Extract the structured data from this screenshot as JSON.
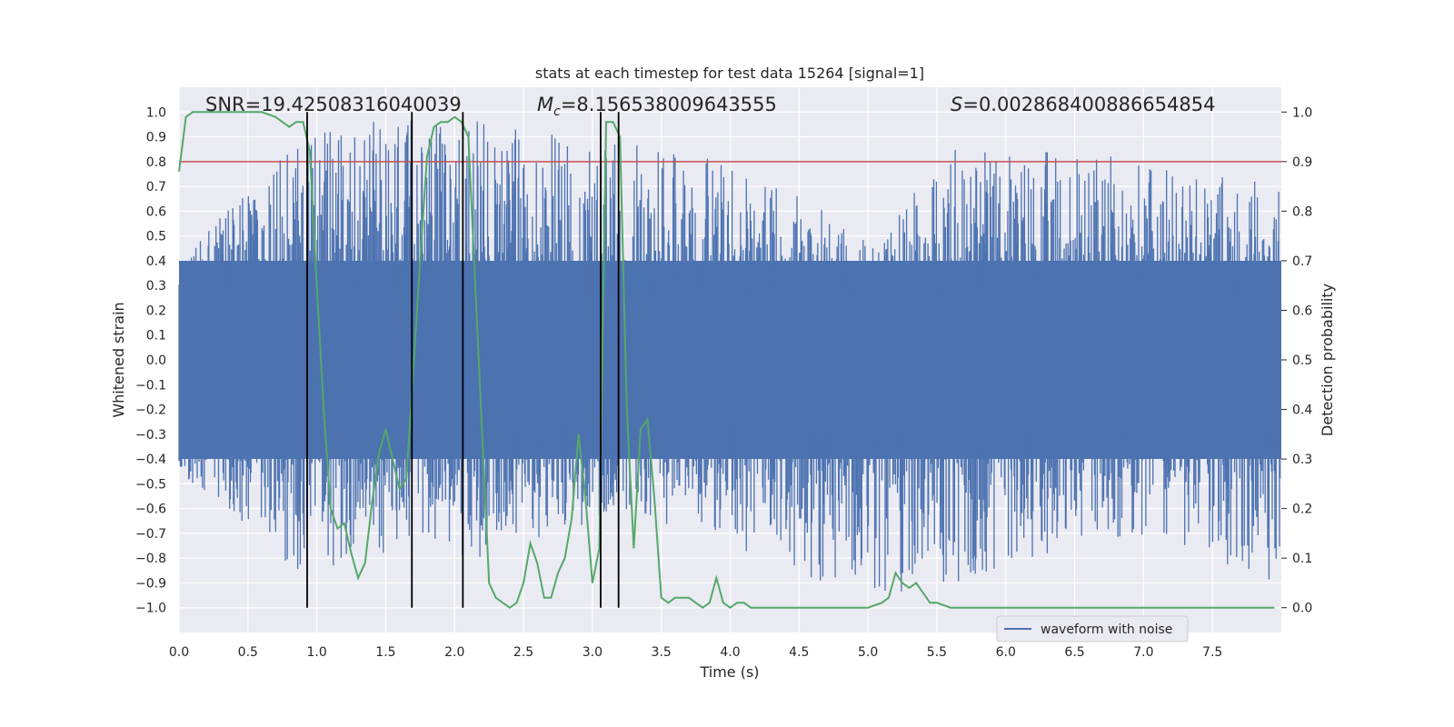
{
  "chart_data": {
    "type": "line",
    "title": "stats at each timestep for test data 15264 [signal=1]",
    "xlabel": "Time (s)",
    "ylabel": "Whitened strain",
    "y2label": "Detection probability",
    "xlim": [
      0.0,
      8.0
    ],
    "ylim": [
      -1.1,
      1.1
    ],
    "y2lim": [
      -0.05,
      1.05
    ],
    "xticks": [
      "0.0",
      "0.5",
      "1.0",
      "1.5",
      "2.0",
      "2.5",
      "3.0",
      "3.5",
      "4.0",
      "4.5",
      "5.0",
      "5.5",
      "6.0",
      "6.5",
      "7.0",
      "7.5"
    ],
    "yticks": [
      "1.0",
      "0.9",
      "0.8",
      "0.7",
      "0.6",
      "0.5",
      "0.4",
      "0.3",
      "0.2",
      "0.1",
      "0.0",
      "-0.1",
      "-0.2",
      "-0.3",
      "-0.4",
      "-0.5",
      "-0.6",
      "-0.7",
      "-0.8",
      "-0.9",
      "-1.0"
    ],
    "y2ticks": [
      "1.0",
      "0.9",
      "0.8",
      "0.7",
      "0.6",
      "0.5",
      "0.4",
      "0.3",
      "0.2",
      "0.1",
      "0.0"
    ],
    "grid": true,
    "legend_position": "lower-right",
    "annotations": {
      "snr": "SNR=19.42508316040039",
      "mc_symbol": "M",
      "mc_sub": "c",
      "mc_value": "=8.156538009643555",
      "s_symbol": "S",
      "s_value": "=0.002868400886654854"
    },
    "series": [
      {
        "name": "waveform with noise",
        "axis": "left",
        "color": "#4c72b0",
        "render": "dense-noise",
        "envelope": [
          {
            "x": 0.0,
            "upper": 0.4,
            "lower": -0.45
          },
          {
            "x": 0.9,
            "upper": 0.92,
            "lower": -0.88
          },
          {
            "x": 1.5,
            "upper": 0.98,
            "lower": -0.78
          },
          {
            "x": 2.1,
            "upper": 0.97,
            "lower": -0.82
          },
          {
            "x": 3.2,
            "upper": 0.88,
            "lower": -0.62
          },
          {
            "x": 4.0,
            "upper": 0.8,
            "lower": -0.75
          },
          {
            "x": 5.1,
            "upper": 0.5,
            "lower": -0.99
          },
          {
            "x": 5.6,
            "upper": 0.88,
            "lower": -0.93
          },
          {
            "x": 6.9,
            "upper": 0.82,
            "lower": -0.7
          },
          {
            "x": 7.9,
            "upper": 0.72,
            "lower": -0.9
          }
        ]
      },
      {
        "name": "detection probability",
        "axis": "right",
        "color": "#55a868",
        "x": [
          0.0,
          0.05,
          0.1,
          0.2,
          0.3,
          0.4,
          0.5,
          0.6,
          0.7,
          0.75,
          0.8,
          0.85,
          0.9,
          0.95,
          1.0,
          1.05,
          1.1,
          1.15,
          1.2,
          1.25,
          1.3,
          1.35,
          1.4,
          1.45,
          1.5,
          1.55,
          1.6,
          1.65,
          1.7,
          1.75,
          1.8,
          1.85,
          1.9,
          1.95,
          2.0,
          2.05,
          2.1,
          2.15,
          2.2,
          2.25,
          2.3,
          2.35,
          2.4,
          2.45,
          2.5,
          2.55,
          2.6,
          2.65,
          2.7,
          2.75,
          2.8,
          2.85,
          2.9,
          2.95,
          3.0,
          3.05,
          3.1,
          3.15,
          3.2,
          3.25,
          3.3,
          3.35,
          3.4,
          3.45,
          3.5,
          3.55,
          3.6,
          3.65,
          3.7,
          3.75,
          3.8,
          3.85,
          3.9,
          3.95,
          4.0,
          4.05,
          4.1,
          4.15,
          4.2,
          4.25,
          4.3,
          4.4,
          4.5,
          4.6,
          4.7,
          4.8,
          4.9,
          5.0,
          5.1,
          5.15,
          5.2,
          5.25,
          5.3,
          5.35,
          5.4,
          5.45,
          5.5,
          5.6,
          5.7,
          5.8,
          5.9,
          6.0,
          6.2,
          6.4,
          6.5,
          6.6,
          6.8,
          7.0,
          7.2,
          7.4,
          7.6,
          7.8,
          7.95
        ],
        "y": [
          0.88,
          0.99,
          1.0,
          1.0,
          1.0,
          1.0,
          1.0,
          1.0,
          0.99,
          0.98,
          0.97,
          0.98,
          0.98,
          0.92,
          0.65,
          0.4,
          0.2,
          0.16,
          0.17,
          0.11,
          0.06,
          0.09,
          0.21,
          0.31,
          0.36,
          0.3,
          0.24,
          0.26,
          0.48,
          0.7,
          0.91,
          0.97,
          0.98,
          0.98,
          0.99,
          0.98,
          0.95,
          0.65,
          0.35,
          0.05,
          0.02,
          0.01,
          0.0,
          0.01,
          0.05,
          0.13,
          0.09,
          0.02,
          0.02,
          0.07,
          0.1,
          0.18,
          0.35,
          0.22,
          0.05,
          0.12,
          0.98,
          0.98,
          0.95,
          0.4,
          0.12,
          0.36,
          0.38,
          0.22,
          0.02,
          0.01,
          0.02,
          0.02,
          0.02,
          0.01,
          0.0,
          0.01,
          0.06,
          0.01,
          0.0,
          0.01,
          0.01,
          0.0,
          0.0,
          0.0,
          0.0,
          0.0,
          0.0,
          0.0,
          0.0,
          0.0,
          0.0,
          0.0,
          0.01,
          0.02,
          0.07,
          0.05,
          0.04,
          0.05,
          0.03,
          0.01,
          0.01,
          0.0,
          0.0,
          0.0,
          0.0,
          0.0,
          0.0,
          0.0,
          0.0,
          0.0,
          0.0,
          0.0,
          0.0,
          0.0,
          0.0,
          0.0,
          0.0
        ]
      }
    ],
    "threshold": {
      "axis": "right",
      "value": 0.9,
      "color": "#c44e52"
    },
    "event_lines": {
      "color": "#000000",
      "x": [
        0.93,
        1.69,
        2.06,
        3.06,
        3.19
      ],
      "y_from": -1.0,
      "y_to": 1.0
    }
  }
}
